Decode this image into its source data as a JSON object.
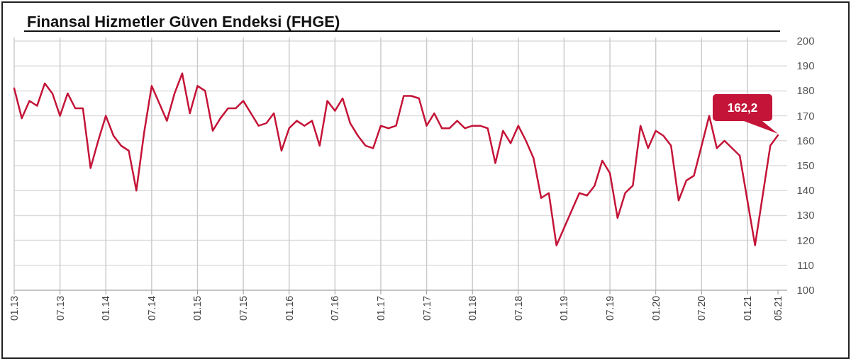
{
  "chart_data": {
    "type": "line",
    "title": "Finansal Hizmetler Güven Endeksi (FHGE)",
    "categories": [
      "01.13",
      null,
      null,
      null,
      null,
      null,
      "07.13",
      null,
      null,
      null,
      null,
      null,
      "01.14",
      null,
      null,
      null,
      null,
      null,
      "07.14",
      null,
      null,
      null,
      null,
      null,
      "01.15",
      null,
      null,
      null,
      null,
      null,
      "07.15",
      null,
      null,
      null,
      null,
      null,
      "01.16",
      null,
      null,
      null,
      null,
      null,
      "07.16",
      null,
      null,
      null,
      null,
      null,
      "01.17",
      null,
      null,
      null,
      null,
      null,
      "07.17",
      null,
      null,
      null,
      null,
      null,
      "01.18",
      null,
      null,
      null,
      null,
      null,
      "07.18",
      null,
      null,
      null,
      null,
      null,
      "01.19",
      null,
      null,
      null,
      null,
      null,
      "07.19",
      null,
      null,
      null,
      null,
      null,
      "01.20",
      null,
      null,
      null,
      null,
      null,
      "07.20",
      null,
      null,
      null,
      null,
      null,
      "01.21",
      null,
      null,
      null,
      "05.21"
    ],
    "series": [
      {
        "color": "#c41438",
        "values": [
          181,
          169,
          176,
          174,
          183,
          179,
          170,
          179,
          173,
          173,
          149,
          160,
          170,
          162,
          158,
          156,
          140,
          163,
          182,
          175,
          168,
          179,
          187,
          171,
          182,
          180,
          164,
          169,
          173,
          173,
          176,
          171,
          166,
          167,
          171,
          156,
          165,
          168,
          166,
          168,
          158,
          176,
          172,
          177,
          167,
          162,
          158,
          157,
          166,
          165,
          166,
          178,
          178,
          177,
          166,
          171,
          165,
          165,
          168,
          165,
          166,
          166,
          165,
          151,
          164,
          159,
          166,
          160,
          153,
          137,
          139,
          118,
          125,
          132,
          139,
          138,
          142,
          152,
          147,
          129,
          139,
          142,
          166,
          157,
          164,
          162,
          158,
          136,
          144,
          146,
          158,
          170,
          157,
          160,
          157,
          154,
          136,
          118,
          138,
          158,
          162.2
        ],
        "value_labels": [
          null,
          null,
          null,
          null,
          null,
          null,
          null,
          null,
          null,
          null,
          null,
          null,
          null,
          null,
          null,
          null,
          null,
          null,
          null,
          null,
          null,
          null,
          null,
          null,
          null,
          null,
          null,
          null,
          null,
          null,
          null,
          null,
          null,
          null,
          null,
          null,
          null,
          null,
          null,
          null,
          null,
          null,
          null,
          null,
          null,
          null,
          null,
          null,
          null,
          null,
          null,
          null,
          null,
          null,
          null,
          null,
          null,
          null,
          null,
          null,
          null,
          null,
          null,
          null,
          null,
          null,
          null,
          null,
          null,
          null,
          null,
          null,
          null,
          null,
          null,
          null,
          null,
          null,
          null,
          null,
          null,
          null,
          null,
          null,
          null,
          null,
          null,
          null,
          null,
          null,
          null,
          null,
          null,
          null,
          null,
          null,
          null,
          null,
          null,
          null,
          "162,2"
        ]
      }
    ],
    "ylim": [
      100,
      200
    ],
    "yticks": [
      100,
      110,
      120,
      130,
      140,
      150,
      160,
      170,
      180,
      190,
      200
    ],
    "grid": true
  }
}
